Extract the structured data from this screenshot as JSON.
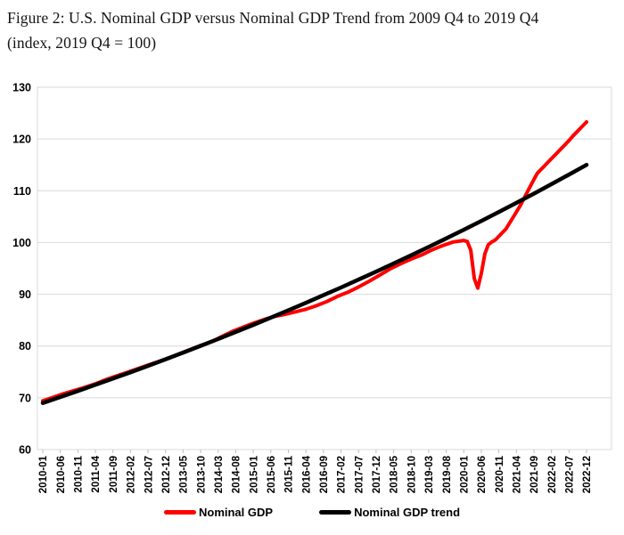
{
  "figure": {
    "title_line1": "Figure 2: U.S. Nominal GDP versus Nominal GDP Trend from 2009 Q4 to 2019 Q4",
    "title_line2": "(index, 2019 Q4 = 100)"
  },
  "chart_data": {
    "type": "line",
    "title": "U.S. Nominal GDP versus Nominal GDP Trend from 2009 Q4 to 2019 Q4 (index, 2019 Q4 = 100)",
    "xlabel": "",
    "ylabel": "",
    "ylim": [
      60,
      130
    ],
    "y_ticks": [
      60,
      70,
      80,
      90,
      100,
      110,
      120,
      130
    ],
    "x_tick_labels": [
      "2010-01",
      "2010-06",
      "2010-11",
      "2011-04",
      "2011-09",
      "2012-02",
      "2012-07",
      "2012-12",
      "2013-05",
      "2013-10",
      "2014-03",
      "2014-08",
      "2015-01",
      "2015-06",
      "2015-11",
      "2016-04",
      "2016-09",
      "2017-02",
      "2017-07",
      "2017-12",
      "2018-05",
      "2018-10",
      "2019-03",
      "2019-08",
      "2020-01",
      "2020-06",
      "2020-11",
      "2021-04",
      "2021-09",
      "2022-02",
      "2022-07",
      "2022-12"
    ],
    "x_tick_interval_months": 5,
    "grid": "horizontal gridlines on",
    "grid_color": "#d9d9d9",
    "axis_line_color": "#bfbfbf",
    "legend_position": "bottom",
    "series": [
      {
        "name": "Nominal GDP",
        "color": "#ff0000",
        "points": [
          [
            "2010-01",
            69.4
          ],
          [
            "2010-04",
            70.1
          ],
          [
            "2010-07",
            70.8
          ],
          [
            "2010-10",
            71.4
          ],
          [
            "2011-01",
            72.0
          ],
          [
            "2011-04",
            72.7
          ],
          [
            "2011-07",
            73.5
          ],
          [
            "2011-10",
            74.2
          ],
          [
            "2012-01",
            74.9
          ],
          [
            "2012-04",
            75.6
          ],
          [
            "2012-07",
            76.3
          ],
          [
            "2012-10",
            77.0
          ],
          [
            "2013-01",
            77.7
          ],
          [
            "2013-04",
            78.5
          ],
          [
            "2013-07",
            79.3
          ],
          [
            "2013-10",
            80.1
          ],
          [
            "2014-01",
            80.8
          ],
          [
            "2014-04",
            81.8
          ],
          [
            "2014-07",
            82.8
          ],
          [
            "2014-10",
            83.6
          ],
          [
            "2015-01",
            84.4
          ],
          [
            "2015-04",
            85.1
          ],
          [
            "2015-07",
            85.7
          ],
          [
            "2015-10",
            86.1
          ],
          [
            "2016-01",
            86.6
          ],
          [
            "2016-04",
            87.1
          ],
          [
            "2016-07",
            87.8
          ],
          [
            "2016-10",
            88.6
          ],
          [
            "2017-01",
            89.6
          ],
          [
            "2017-04",
            90.4
          ],
          [
            "2017-07",
            91.4
          ],
          [
            "2017-10",
            92.5
          ],
          [
            "2018-01",
            93.7
          ],
          [
            "2018-04",
            94.9
          ],
          [
            "2018-07",
            95.9
          ],
          [
            "2018-10",
            96.8
          ],
          [
            "2019-01",
            97.6
          ],
          [
            "2019-04",
            98.6
          ],
          [
            "2019-07",
            99.4
          ],
          [
            "2019-10",
            100.1
          ],
          [
            "2020-01",
            100.4
          ],
          [
            "2020-02",
            100.2
          ],
          [
            "2020-03",
            98.5
          ],
          [
            "2020-04",
            93.0
          ],
          [
            "2020-05",
            91.2
          ],
          [
            "2020-06",
            94.0
          ],
          [
            "2020-07",
            97.8
          ],
          [
            "2020-08",
            99.6
          ],
          [
            "2020-09",
            100.1
          ],
          [
            "2020-10",
            100.5
          ],
          [
            "2020-11",
            101.2
          ],
          [
            "2020-12",
            101.9
          ],
          [
            "2021-01",
            102.6
          ],
          [
            "2021-02",
            103.7
          ],
          [
            "2021-03",
            104.8
          ],
          [
            "2021-04",
            105.9
          ],
          [
            "2021-05",
            107.0
          ],
          [
            "2021-06",
            108.3
          ],
          [
            "2021-07",
            109.6
          ],
          [
            "2021-08",
            110.9
          ],
          [
            "2021-09",
            112.2
          ],
          [
            "2021-10",
            113.4
          ],
          [
            "2021-11",
            114.1
          ],
          [
            "2021-12",
            114.8
          ],
          [
            "2022-01",
            115.5
          ],
          [
            "2022-02",
            116.2
          ],
          [
            "2022-03",
            116.9
          ],
          [
            "2022-04",
            117.6
          ],
          [
            "2022-05",
            118.3
          ],
          [
            "2022-06",
            119.0
          ],
          [
            "2022-07",
            119.7
          ],
          [
            "2022-08",
            120.5
          ],
          [
            "2022-09",
            121.2
          ],
          [
            "2022-10",
            121.9
          ],
          [
            "2022-11",
            122.6
          ],
          [
            "2022-12",
            123.3
          ]
        ]
      },
      {
        "name": "Nominal GDP trend",
        "color": "#000000",
        "shape": "exponential",
        "start": [
          "2010-01",
          69.0
        ],
        "end": [
          "2022-12",
          115.0
        ]
      }
    ]
  },
  "legend": {
    "items": [
      {
        "label": "Nominal GDP",
        "color": "#ff0000"
      },
      {
        "label": "Nominal GDP trend",
        "color": "#000000"
      }
    ]
  }
}
